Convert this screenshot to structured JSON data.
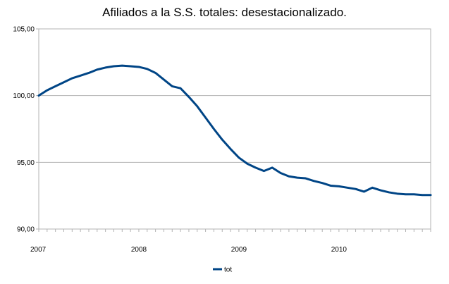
{
  "chart_data": {
    "type": "line",
    "title": "Afiliados a la S.S. totales: desestacionalizado.",
    "xlabel": "",
    "ylabel": "",
    "ylim": [
      90,
      105
    ],
    "y_ticks": [
      "90,00",
      "95,00",
      "100,00",
      "105,00"
    ],
    "y_tick_values": [
      90,
      95,
      100,
      105
    ],
    "x_tick_labels": [
      "2007",
      "2008",
      "2009",
      "2010"
    ],
    "x_tick_positions": [
      0,
      12,
      24,
      36
    ],
    "x_range": [
      0,
      47
    ],
    "grid": true,
    "legend_position": "bottom",
    "series": [
      {
        "name": "tot",
        "color": "#004586",
        "x": [
          0,
          1,
          2,
          3,
          4,
          5,
          6,
          7,
          8,
          9,
          10,
          11,
          12,
          13,
          14,
          15,
          16,
          17,
          18,
          19,
          20,
          21,
          22,
          23,
          24,
          25,
          26,
          27,
          28,
          29,
          30,
          31,
          32,
          33,
          34,
          35,
          36,
          37,
          38,
          39,
          40,
          41,
          42,
          43,
          44,
          45,
          46,
          47
        ],
        "values": [
          100.0,
          100.4,
          100.7,
          101.0,
          101.3,
          101.5,
          101.7,
          101.95,
          102.1,
          102.2,
          102.25,
          102.2,
          102.15,
          102.0,
          101.7,
          101.2,
          100.7,
          100.55,
          99.9,
          99.2,
          98.35,
          97.5,
          96.7,
          96.0,
          95.35,
          94.9,
          94.6,
          94.35,
          94.6,
          94.2,
          93.95,
          93.85,
          93.8,
          93.6,
          93.45,
          93.25,
          93.2,
          93.1,
          93.0,
          92.8,
          93.1,
          92.9,
          92.75,
          92.65,
          92.6,
          92.6,
          92.55,
          92.55
        ]
      }
    ]
  }
}
